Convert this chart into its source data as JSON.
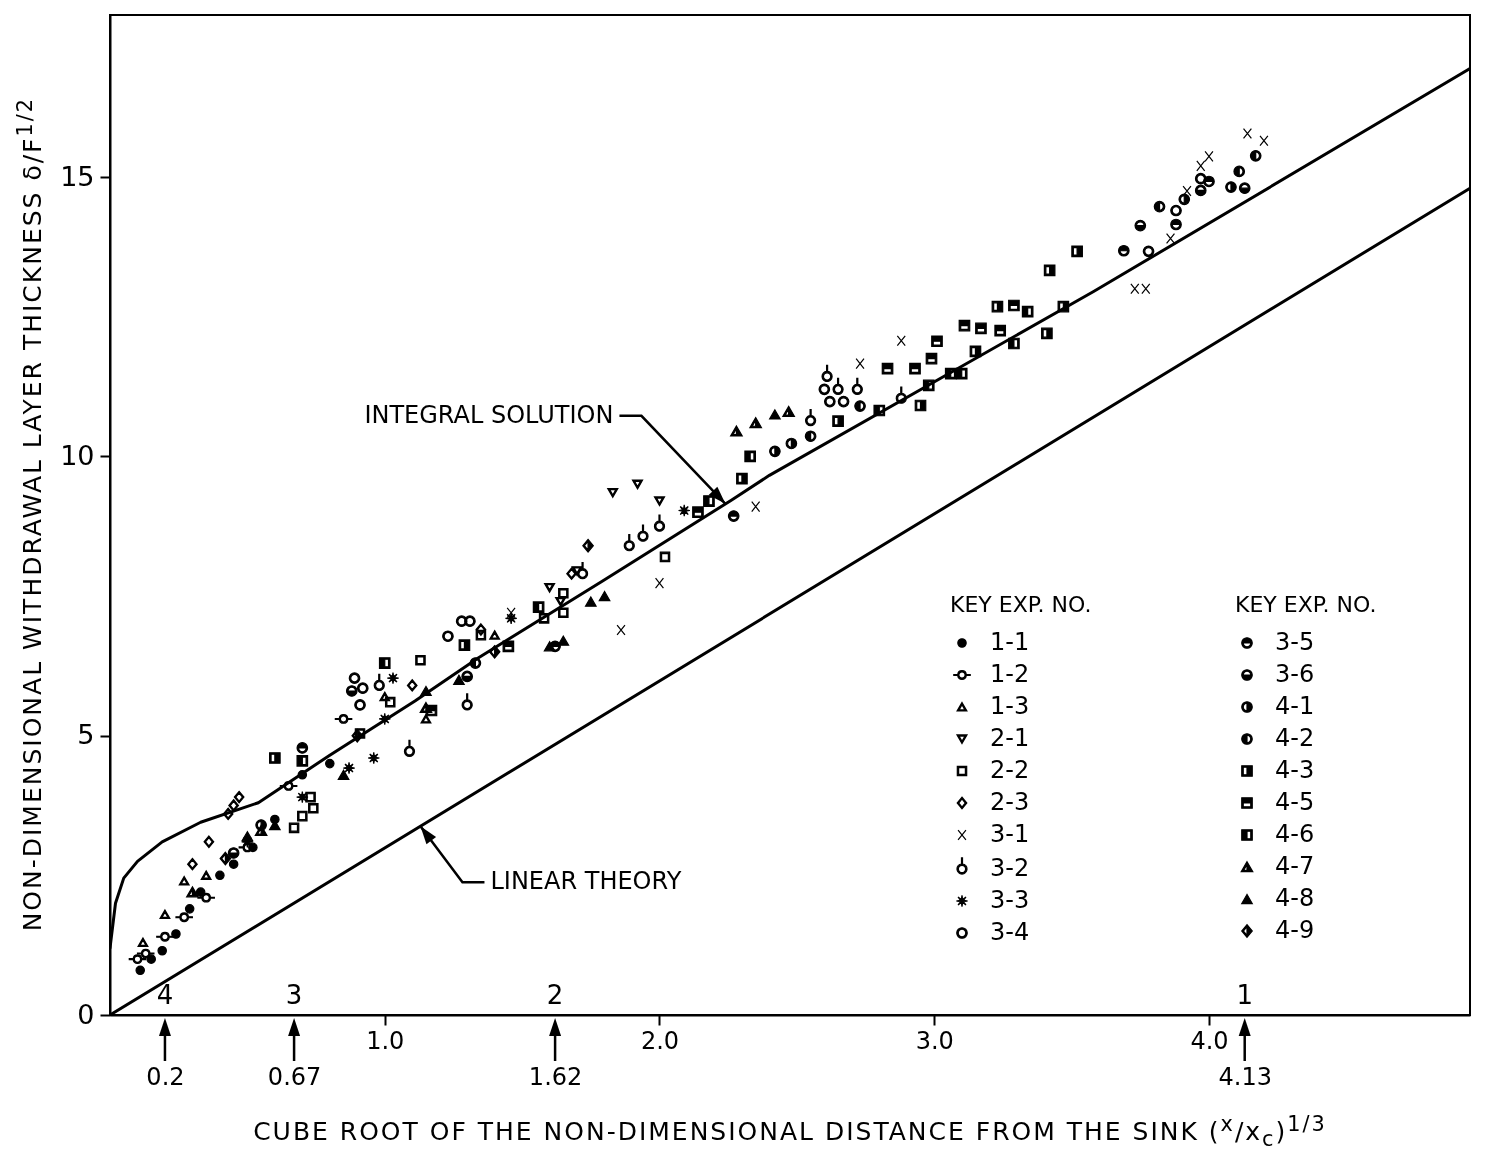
{
  "chart_data": {
    "type": "scatter",
    "xlabel": "CUBE ROOT OF THE NON-DIMENSIONAL DISTANCE FROM THE SINK ($^{x}$/x$_{c}$)$^{1/3}$",
    "ylabel": "NON-DIMENSIONAL WITHDRAWAL LAYER THICKNESS δ/F$^{1/2}$",
    "legend_title": "KEY      EXP. NO.",
    "legend": "bottom right",
    "xlim": [
      0,
      4.95
    ],
    "ylim": [
      0,
      17.9
    ],
    "xticks": [
      {
        "value": 1,
        "label": "1.0"
      },
      {
        "value": 2,
        "label": "2.0"
      },
      {
        "value": 3,
        "label": "3.0"
      },
      {
        "value": 4,
        "label": "4.0"
      }
    ],
    "x2lim": [
      0,
      4.95
    ],
    "x2ticks": [
      0.2,
      0.67,
      1.62,
      4.13
    ],
    "yticks": [
      0,
      5,
      10,
      15
    ],
    "annotations": [
      {
        "text": "INTEGRAL SOLUTION",
        "x": 2.24,
        "y": 9.15
      },
      {
        "text": "LINEAR THEORY",
        "x": 1.13,
        "y": 3.38
      },
      "4",
      "3",
      "2",
      "1"
    ],
    "series": [
      {
        "type": "line",
        "color": "#000000",
        "x": [
          0,
          0.02,
          0.05,
          0.1,
          0.19,
          0.33,
          0.54,
          0.8,
          1.11,
          1.34,
          1.79,
          2.26,
          2.4,
          3.58,
          4.95
        ],
        "values": [
          1.2,
          2.0,
          2.45,
          2.75,
          3.1,
          3.45,
          3.8,
          4.65,
          5.62,
          6.39,
          7.76,
          9.21,
          9.66,
          12.95,
          16.94
        ]
      },
      {
        "type": "line",
        "color": "#000000",
        "x": [
          0,
          4.95
        ],
        "values": [
          0,
          14.8
        ]
      },
      {
        "name": "1-1",
        "color": "#000000",
        "marker": "circle",
        "x": [
          0.11,
          0.15,
          0.19,
          0.24,
          0.29,
          0.33,
          0.4,
          0.45,
          0.52,
          0.6,
          0.7,
          0.8
        ],
        "values": [
          0.8,
          1.0,
          1.15,
          1.45,
          1.9,
          2.2,
          2.5,
          2.7,
          3.0,
          3.5,
          4.3,
          4.5
        ]
      },
      {
        "name": "1-2",
        "color": "#000000",
        "marker": "circle-crossbar",
        "x": [
          0.1,
          0.13,
          0.2,
          0.27,
          0.35,
          0.5,
          0.65,
          0.85
        ],
        "values": [
          1.0,
          1.1,
          1.4,
          1.75,
          2.1,
          3.0,
          4.1,
          5.3
        ]
      },
      {
        "name": "1-3",
        "color": "#000000",
        "marker": "triangle-open",
        "x": [
          0.12,
          0.2,
          0.27,
          0.35,
          1.0,
          1.15,
          1.4
        ],
        "values": [
          1.3,
          1.8,
          2.4,
          2.5,
          5.7,
          5.3,
          6.8
        ]
      },
      {
        "name": "2-1",
        "color": "#000000",
        "marker": "triangle-down-open",
        "x": [
          1.83,
          1.92,
          2.0,
          1.6,
          1.7,
          1.64
        ],
        "values": [
          9.35,
          9.5,
          9.2,
          7.65,
          7.95,
          7.4
        ]
      },
      {
        "name": "2-2",
        "color": "#000000",
        "marker": "square-open",
        "x": [
          0.67,
          0.7,
          0.74,
          0.73,
          0.91,
          1.02,
          1.13,
          1.35,
          1.65,
          1.65,
          2.02,
          1.58
        ],
        "values": [
          3.35,
          3.56,
          3.7,
          3.9,
          5.04,
          5.6,
          6.35,
          6.8,
          7.55,
          7.2,
          8.2,
          7.1
        ]
      },
      {
        "name": "2-3",
        "color": "#000000",
        "marker": "diamond-open",
        "x": [
          0.3,
          0.36,
          0.43,
          0.45,
          0.47,
          1.1,
          1.35,
          1.68
        ],
        "values": [
          2.7,
          3.1,
          3.6,
          3.75,
          3.9,
          5.9,
          6.9,
          7.9
        ]
      },
      {
        "name": "3-1",
        "color": "#000000",
        "marker": "cross",
        "x": [
          1.46,
          1.86,
          2.0,
          2.35,
          2.73,
          2.88,
          3.73,
          3.77,
          3.86,
          3.92,
          3.97,
          4.0,
          4.14,
          4.2
        ],
        "values": [
          7.2,
          6.89,
          7.73,
          9.1,
          11.66,
          12.07,
          13.0,
          13.0,
          13.9,
          14.75,
          15.2,
          15.37,
          15.78,
          15.65
        ]
      },
      {
        "name": "3-2",
        "color": "#000000",
        "marker": "circle-stem",
        "x": [
          1.09,
          1.3,
          0.98,
          1.72,
          1.89,
          1.94,
          2.0,
          2.55,
          2.61,
          2.65,
          2.72,
          2.88
        ],
        "values": [
          4.72,
          5.55,
          5.9,
          7.9,
          8.4,
          8.57,
          8.75,
          10.64,
          11.43,
          11.2,
          11.2,
          11.04
        ]
      },
      {
        "name": "3-3",
        "color": "#000000",
        "marker": "star",
        "x": [
          0.5,
          0.7,
          0.87,
          0.96,
          1.0,
          1.03,
          1.46,
          2.09
        ],
        "values": [
          3.1,
          3.9,
          4.42,
          4.6,
          5.3,
          6.03,
          7.1,
          9.03
        ]
      },
      {
        "name": "3-4",
        "color": "#000000",
        "marker": "circle-open",
        "x": [
          0.89,
          0.92,
          0.91,
          1.23,
          1.28,
          1.31,
          2.62,
          2.67,
          2.6,
          3.78,
          3.88,
          3.97
        ],
        "values": [
          6.03,
          5.85,
          5.55,
          6.78,
          7.05,
          7.05,
          10.98,
          10.98,
          11.2,
          13.67,
          14.4,
          14.97
        ]
      },
      {
        "name": "3-5",
        "color": "#000000",
        "marker": "circle-half-top",
        "x": [
          0.7,
          1.62,
          3.69,
          3.88,
          4.0,
          2.27
        ],
        "values": [
          4.78,
          6.6,
          13.68,
          14.15,
          14.92,
          8.93
        ]
      },
      {
        "name": "3-6",
        "color": "#000000",
        "marker": "circle-half-bottom",
        "x": [
          0.45,
          1.3,
          3.75,
          3.97,
          4.13,
          0.88
        ],
        "values": [
          2.9,
          6.06,
          14.13,
          14.76,
          14.8,
          5.8
        ]
      },
      {
        "name": "4-1",
        "color": "#000000",
        "marker": "circle-half-right",
        "x": [
          2.42,
          2.48,
          3.91,
          4.08,
          0.55
        ],
        "values": [
          10.09,
          10.23,
          14.6,
          14.82,
          3.4
        ]
      },
      {
        "name": "4-2",
        "color": "#000000",
        "marker": "circle-half-left",
        "x": [
          2.55,
          2.73,
          3.82,
          4.11,
          4.17,
          1.33
        ],
        "values": [
          10.36,
          10.9,
          14.47,
          15.1,
          15.38,
          6.3
        ]
      },
      {
        "name": "4-3",
        "color": "#000000",
        "marker": "square-half-right",
        "x": [
          3.23,
          3.47,
          3.41,
          3.15,
          2.95,
          2.65,
          3.52,
          3.42,
          2.3,
          0.6,
          1.29
        ],
        "values": [
          12.68,
          12.68,
          12.2,
          11.88,
          10.91,
          10.63,
          13.67,
          13.33,
          9.6,
          4.6,
          6.62
        ]
      },
      {
        "name": "4-5",
        "color": "#000000",
        "marker": "square-half-top",
        "x": [
          3.29,
          3.11,
          3.17,
          3.24,
          3.01,
          2.99,
          2.93,
          2.83,
          2.14,
          1.45,
          1.17
        ],
        "values": [
          12.7,
          12.34,
          12.29,
          12.25,
          12.06,
          11.75,
          11.57,
          11.57,
          9.0,
          6.6,
          5.45
        ]
      },
      {
        "name": "4-6",
        "color": "#000000",
        "marker": "square-half-left",
        "x": [
          3.34,
          3.29,
          3.1,
          3.06,
          2.98,
          2.8,
          2.33,
          2.18,
          1.56,
          1.0,
          0.7
        ],
        "values": [
          12.59,
          12.02,
          11.48,
          11.48,
          11.27,
          10.82,
          10.0,
          9.2,
          7.3,
          6.3,
          4.55
        ]
      },
      {
        "name": "4-7",
        "color": "#000000",
        "marker": "triangle-half-right",
        "x": [
          0.3,
          0.55,
          1.15,
          2.28,
          2.35,
          2.47
        ],
        "values": [
          2.2,
          3.3,
          5.5,
          10.45,
          10.6,
          10.8
        ]
      },
      {
        "name": "4-8",
        "color": "#000000",
        "marker": "triangle",
        "x": [
          2.42,
          1.6,
          1.65,
          1.75,
          1.27,
          1.15,
          0.85,
          0.6,
          0.5,
          1.8
        ],
        "values": [
          10.75,
          6.6,
          6.7,
          7.4,
          6.0,
          5.8,
          4.3,
          3.4,
          3.2,
          7.5
        ]
      },
      {
        "name": "4-9",
        "color": "#000000",
        "marker": "diamond-half-right",
        "x": [
          1.74,
          1.4,
          0.42,
          0.9
        ],
        "values": [
          8.4,
          6.5,
          2.8,
          5.0
        ]
      }
    ]
  }
}
